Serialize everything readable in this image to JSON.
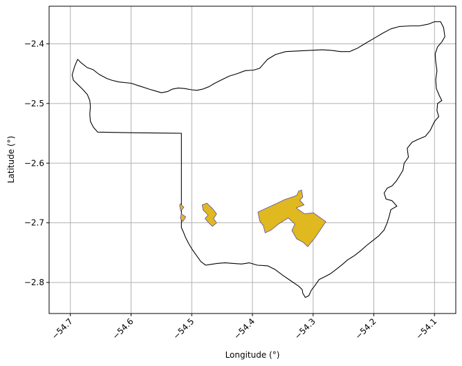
{
  "chart_data": {
    "type": "map",
    "title": "",
    "xlabel": "Longitude (°)",
    "ylabel": "Latitude (°)",
    "xlim": [
      -54.735,
      -54.065
    ],
    "ylim": [
      -2.852,
      -2.337
    ],
    "grid": true,
    "x_ticks": [
      {
        "value": -54.7,
        "label": "−54.7"
      },
      {
        "value": -54.6,
        "label": "−54.6"
      },
      {
        "value": -54.5,
        "label": "−54.5"
      },
      {
        "value": -54.4,
        "label": "−54.4"
      },
      {
        "value": -54.3,
        "label": "−54.3"
      },
      {
        "value": -54.2,
        "label": "−54.2"
      },
      {
        "value": -54.1,
        "label": "−54.1"
      }
    ],
    "y_ticks": [
      {
        "value": -2.4,
        "label": "−2.4"
      },
      {
        "value": -2.5,
        "label": "−2.5"
      },
      {
        "value": -2.6,
        "label": "−2.6"
      },
      {
        "value": -2.7,
        "label": "−2.7"
      },
      {
        "value": -2.8,
        "label": "−2.8"
      }
    ],
    "colors": {
      "boundary_stroke": "#000000",
      "area_fill": "#e0b820",
      "area_stroke": "#5b4fa0",
      "grid": "#b0b0b0"
    },
    "boundary": [
      [
        -54.697,
        -2.452
      ],
      [
        -54.693,
        -2.438
      ],
      [
        -54.688,
        -2.426
      ],
      [
        -54.682,
        -2.432
      ],
      [
        -54.672,
        -2.44
      ],
      [
        -54.663,
        -2.443
      ],
      [
        -54.653,
        -2.451
      ],
      [
        -54.64,
        -2.458
      ],
      [
        -54.632,
        -2.461
      ],
      [
        -54.62,
        -2.464
      ],
      [
        -54.6,
        -2.466
      ],
      [
        -54.585,
        -2.471
      ],
      [
        -54.57,
        -2.476
      ],
      [
        -54.56,
        -2.479
      ],
      [
        -54.55,
        -2.482
      ],
      [
        -54.54,
        -2.48
      ],
      [
        -54.532,
        -2.476
      ],
      [
        -54.522,
        -2.474
      ],
      [
        -54.512,
        -2.475
      ],
      [
        -54.5,
        -2.477
      ],
      [
        -54.492,
        -2.478
      ],
      [
        -54.482,
        -2.476
      ],
      [
        -54.472,
        -2.472
      ],
      [
        -54.462,
        -2.466
      ],
      [
        -54.45,
        -2.46
      ],
      [
        -54.438,
        -2.454
      ],
      [
        -54.425,
        -2.45
      ],
      [
        -54.412,
        -2.445
      ],
      [
        -54.398,
        -2.444
      ],
      [
        -54.388,
        -2.441
      ],
      [
        -54.382,
        -2.434
      ],
      [
        -54.375,
        -2.426
      ],
      [
        -54.362,
        -2.418
      ],
      [
        -54.345,
        -2.413
      ],
      [
        -54.325,
        -2.412
      ],
      [
        -54.305,
        -2.411
      ],
      [
        -54.285,
        -2.41
      ],
      [
        -54.27,
        -2.411
      ],
      [
        -54.255,
        -2.413
      ],
      [
        -54.24,
        -2.413
      ],
      [
        -54.228,
        -2.408
      ],
      [
        -54.215,
        -2.4
      ],
      [
        -54.2,
        -2.391
      ],
      [
        -54.185,
        -2.382
      ],
      [
        -54.172,
        -2.375
      ],
      [
        -54.158,
        -2.371
      ],
      [
        -54.14,
        -2.37
      ],
      [
        -54.125,
        -2.37
      ],
      [
        -54.11,
        -2.367
      ],
      [
        -54.1,
        -2.363
      ],
      [
        -54.09,
        -2.363
      ],
      [
        -54.085,
        -2.373
      ],
      [
        -54.083,
        -2.388
      ],
      [
        -54.088,
        -2.397
      ],
      [
        -54.095,
        -2.405
      ],
      [
        -54.099,
        -2.417
      ],
      [
        -54.098,
        -2.43
      ],
      [
        -54.096,
        -2.445
      ],
      [
        -54.098,
        -2.46
      ],
      [
        -54.097,
        -2.475
      ],
      [
        -54.092,
        -2.487
      ],
      [
        -54.088,
        -2.495
      ],
      [
        -54.095,
        -2.5
      ],
      [
        -54.096,
        -2.512
      ],
      [
        -54.093,
        -2.522
      ],
      [
        -54.1,
        -2.53
      ],
      [
        -54.107,
        -2.545
      ],
      [
        -54.115,
        -2.555
      ],
      [
        -54.127,
        -2.56
      ],
      [
        -54.137,
        -2.565
      ],
      [
        -54.145,
        -2.575
      ],
      [
        -54.143,
        -2.59
      ],
      [
        -54.15,
        -2.6
      ],
      [
        -54.152,
        -2.612
      ],
      [
        -54.158,
        -2.622
      ],
      [
        -54.163,
        -2.63
      ],
      [
        -54.17,
        -2.638
      ],
      [
        -54.178,
        -2.642
      ],
      [
        -54.183,
        -2.65
      ],
      [
        -54.18,
        -2.66
      ],
      [
        -54.17,
        -2.663
      ],
      [
        -54.162,
        -2.672
      ],
      [
        -54.172,
        -2.678
      ],
      [
        -54.175,
        -2.69
      ],
      [
        -54.178,
        -2.7
      ],
      [
        -54.183,
        -2.712
      ],
      [
        -54.192,
        -2.722
      ],
      [
        -54.202,
        -2.73
      ],
      [
        -54.212,
        -2.738
      ],
      [
        -54.222,
        -2.747
      ],
      [
        -54.232,
        -2.755
      ],
      [
        -54.243,
        -2.762
      ],
      [
        -54.252,
        -2.77
      ],
      [
        -54.262,
        -2.778
      ],
      [
        -54.271,
        -2.785
      ],
      [
        -54.28,
        -2.79
      ],
      [
        -54.29,
        -2.795
      ],
      [
        -54.297,
        -2.805
      ],
      [
        -54.303,
        -2.813
      ],
      [
        -54.307,
        -2.822
      ],
      [
        -54.313,
        -2.825
      ],
      [
        -54.317,
        -2.818
      ],
      [
        -54.318,
        -2.812
      ],
      [
        -54.324,
        -2.806
      ],
      [
        -54.337,
        -2.797
      ],
      [
        -54.35,
        -2.788
      ],
      [
        -54.363,
        -2.778
      ],
      [
        -54.375,
        -2.772
      ],
      [
        -54.392,
        -2.771
      ],
      [
        -54.405,
        -2.767
      ],
      [
        -54.418,
        -2.769
      ],
      [
        -54.432,
        -2.768
      ],
      [
        -54.445,
        -2.767
      ],
      [
        -54.458,
        -2.768
      ],
      [
        -54.47,
        -2.77
      ],
      [
        -54.477,
        -2.771
      ],
      [
        -54.485,
        -2.765
      ],
      [
        -54.492,
        -2.755
      ],
      [
        -54.499,
        -2.745
      ],
      [
        -54.505,
        -2.735
      ],
      [
        -54.51,
        -2.725
      ],
      [
        -54.514,
        -2.715
      ],
      [
        -54.517,
        -2.708
      ],
      [
        -54.517,
        -2.69
      ],
      [
        -54.517,
        -2.67
      ],
      [
        -54.517,
        -2.65
      ],
      [
        -54.517,
        -2.63
      ],
      [
        -54.517,
        -2.61
      ],
      [
        -54.517,
        -2.59
      ],
      [
        -54.517,
        -2.57
      ],
      [
        -54.517,
        -2.55
      ],
      [
        -54.6,
        -2.549
      ],
      [
        -54.655,
        -2.548
      ],
      [
        -54.662,
        -2.54
      ],
      [
        -54.667,
        -2.53
      ],
      [
        -54.668,
        -2.518
      ],
      [
        -54.667,
        -2.505
      ],
      [
        -54.668,
        -2.495
      ],
      [
        -54.672,
        -2.485
      ],
      [
        -54.68,
        -2.476
      ],
      [
        -54.688,
        -2.468
      ],
      [
        -54.695,
        -2.461
      ],
      [
        -54.697,
        -2.452
      ]
    ],
    "areas": [
      [
        [
          -54.519,
          -2.668
        ],
        [
          -54.513,
          -2.674
        ],
        [
          -54.518,
          -2.68
        ],
        [
          -54.52,
          -2.671
        ],
        [
          -54.519,
          -2.668
        ]
      ],
      [
        [
          -54.517,
          -2.685
        ],
        [
          -54.51,
          -2.69
        ],
        [
          -54.512,
          -2.694
        ],
        [
          -54.515,
          -2.698
        ],
        [
          -54.519,
          -2.692
        ],
        [
          -54.517,
          -2.685
        ]
      ],
      [
        [
          -54.483,
          -2.67
        ],
        [
          -54.475,
          -2.667
        ],
        [
          -54.465,
          -2.677
        ],
        [
          -54.459,
          -2.685
        ],
        [
          -54.464,
          -2.693
        ],
        [
          -54.459,
          -2.7
        ],
        [
          -54.466,
          -2.706
        ],
        [
          -54.472,
          -2.7
        ],
        [
          -54.478,
          -2.693
        ],
        [
          -54.473,
          -2.687
        ],
        [
          -54.481,
          -2.679
        ],
        [
          -54.483,
          -2.67
        ]
      ],
      [
        [
          -54.391,
          -2.682
        ],
        [
          -54.359,
          -2.667
        ],
        [
          -54.347,
          -2.661
        ],
        [
          -54.335,
          -2.657
        ],
        [
          -54.327,
          -2.654
        ],
        [
          -54.324,
          -2.647
        ],
        [
          -54.319,
          -2.645
        ],
        [
          -54.317,
          -2.657
        ],
        [
          -54.322,
          -2.662
        ],
        [
          -54.315,
          -2.67
        ],
        [
          -54.328,
          -2.675
        ],
        [
          -54.314,
          -2.685
        ],
        [
          -54.3,
          -2.683
        ],
        [
          -54.279,
          -2.698
        ],
        [
          -54.297,
          -2.725
        ],
        [
          -54.309,
          -2.74
        ],
        [
          -54.316,
          -2.733
        ],
        [
          -54.327,
          -2.727
        ],
        [
          -54.335,
          -2.713
        ],
        [
          -54.33,
          -2.702
        ],
        [
          -54.341,
          -2.692
        ],
        [
          -54.357,
          -2.702
        ],
        [
          -54.369,
          -2.712
        ],
        [
          -54.379,
          -2.717
        ],
        [
          -54.382,
          -2.705
        ],
        [
          -54.388,
          -2.697
        ],
        [
          -54.391,
          -2.682
        ]
      ]
    ]
  }
}
